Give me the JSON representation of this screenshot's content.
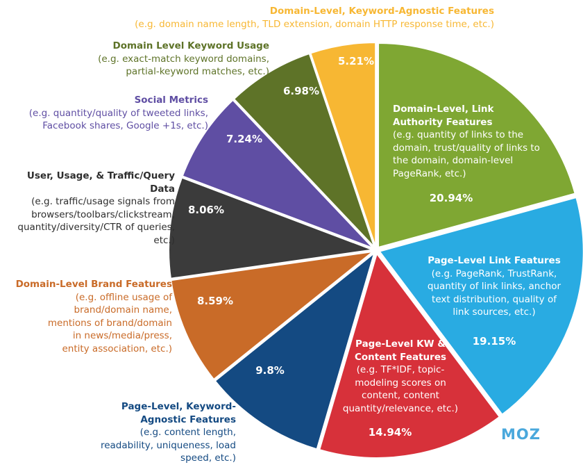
{
  "chart_data": {
    "type": "pie",
    "title": "",
    "slices": [
      {
        "name": "Domain-Level, Link Authority Features",
        "desc": "(e.g. quantity of links to the domain, trust/quality of links to the domain, domain-level PageRank, etc.)",
        "value": 20.94,
        "label": "20.94%",
        "color": "#7fa733"
      },
      {
        "name": "Page-Level Link Features",
        "desc": "(e.g. PageRank, TrustRank, quantity of link links, anchor text distribution, quality of link sources, etc.)",
        "value": 19.15,
        "label": "19.15%",
        "color": "#29abe2"
      },
      {
        "name": "Page-Level KW & Content Features",
        "desc": "(e.g. TF*IDF, topic-modeling scores on content, content quantity/relevance, etc.)",
        "value": 14.94,
        "label": "14.94%",
        "color": "#d7313a"
      },
      {
        "name": "Page-Level, Keyword-Agnostic Features",
        "desc": "(e.g. content length, readability, uniqueness, load speed, etc.)",
        "value": 9.8,
        "label": "9.8%",
        "color": "#144a82"
      },
      {
        "name": "Domain-Level Brand Features",
        "desc": "(e.g. offline usage of brand/domain name, mentions of brand/domain in news/media/press, entity association, etc.)",
        "value": 8.59,
        "label": "8.59%",
        "color": "#c96b28"
      },
      {
        "name": "User, Usage, & Traffic/Query Data",
        "desc": "(e.g. traffic/usage signals from browsers/toolbars/clickstream, quantity/diversity/CTR of queries, etc.)",
        "value": 8.06,
        "label": "8.06%",
        "color": "#3b3b3b"
      },
      {
        "name": "Social Metrics",
        "desc": "(e.g. quantity/quality of tweeted links, Facebook shares, Google +1s, etc.)",
        "value": 7.24,
        "label": "7.24%",
        "color": "#5f4ea3"
      },
      {
        "name": "Domain Level Keyword Usage",
        "desc": "(e.g. exact-match keyword domains, partial-keyword matches, etc.)",
        "value": 6.98,
        "label": "6.98%",
        "color": "#5e7328"
      },
      {
        "name": "Domain-Level, Keyword-Agnostic Features",
        "desc": "(e.g. domain name length, TLD extension, domain HTTP response time, etc.)",
        "value": 5.21,
        "label": "5.21%",
        "color": "#f7b733"
      }
    ]
  },
  "brand": {
    "logo_text": "MOZ",
    "logo_color": "#4aa8dc"
  }
}
